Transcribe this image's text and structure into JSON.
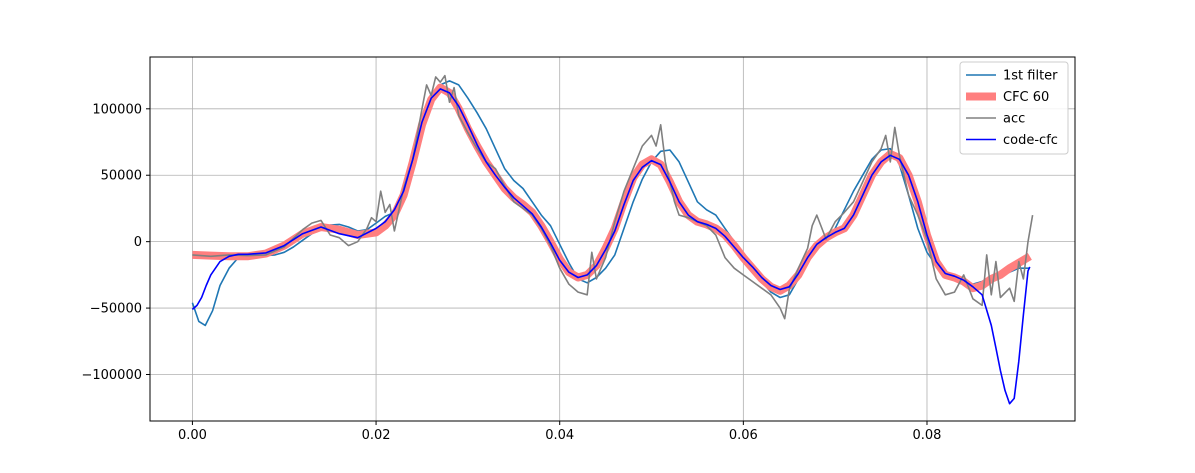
{
  "chart_data": {
    "type": "line",
    "title": "",
    "xlabel": "",
    "ylabel": "",
    "xlim": [
      -0.00462,
      0.09612
    ],
    "ylim": [
      -135000,
      139000
    ],
    "grid": true,
    "legend_position": "upper-right",
    "x_ticks": [
      0.0,
      0.02,
      0.04,
      0.06,
      0.08
    ],
    "x_tick_labels": [
      "0.00",
      "0.02",
      "0.04",
      "0.06",
      "0.08"
    ],
    "y_ticks": [
      -100000,
      -50000,
      0,
      50000,
      100000
    ],
    "y_tick_labels": [
      "−100000",
      "−50000",
      "0",
      "50000",
      "100000"
    ],
    "legend": [
      "1st filter",
      "CFC 60",
      "acc",
      "code-cfc"
    ],
    "series": [
      {
        "name": "1st filter",
        "color": "#1f77b4",
        "x": [
          0.0,
          0.0007,
          0.0014,
          0.0022,
          0.003,
          0.004,
          0.005,
          0.006,
          0.007,
          0.008,
          0.009,
          0.01,
          0.011,
          0.012,
          0.013,
          0.014,
          0.015,
          0.016,
          0.017,
          0.018,
          0.019,
          0.02,
          0.021,
          0.022,
          0.023,
          0.024,
          0.025,
          0.026,
          0.027,
          0.028,
          0.029,
          0.03,
          0.031,
          0.032,
          0.033,
          0.034,
          0.035,
          0.036,
          0.037,
          0.038,
          0.039,
          0.04,
          0.041,
          0.042,
          0.043,
          0.044,
          0.045,
          0.046,
          0.047,
          0.048,
          0.049,
          0.05,
          0.051,
          0.052,
          0.053,
          0.054,
          0.055,
          0.056,
          0.057,
          0.058,
          0.059,
          0.06,
          0.061,
          0.062,
          0.063,
          0.064,
          0.065,
          0.066,
          0.067,
          0.068,
          0.069,
          0.07,
          0.071,
          0.072,
          0.073,
          0.074,
          0.075,
          0.076,
          0.077,
          0.078,
          0.079,
          0.08,
          0.081,
          0.082,
          0.083,
          0.084,
          0.085,
          0.086,
          0.087,
          0.088,
          0.089,
          0.09,
          0.0912
        ],
        "y": [
          -46000,
          -60000,
          -63000,
          -52000,
          -33000,
          -20000,
          -12000,
          -9000,
          -9500,
          -10500,
          -10000,
          -8000,
          -4000,
          1000,
          6000,
          10000,
          12500,
          13000,
          11000,
          8000,
          9000,
          14000,
          19000,
          22000,
          32000,
          55000,
          85000,
          108000,
          118000,
          121000,
          118000,
          108000,
          97000,
          85000,
          70000,
          55000,
          46000,
          40000,
          30000,
          20000,
          12000,
          -2000,
          -16000,
          -28000,
          -31000,
          -27000,
          -20000,
          -10000,
          10000,
          30000,
          47000,
          60000,
          68000,
          69000,
          60000,
          45000,
          30000,
          24000,
          20000,
          10000,
          0,
          -10000,
          -20000,
          -30000,
          -38000,
          -42000,
          -40000,
          -28000,
          -15000,
          -5000,
          2000,
          10000,
          24000,
          38000,
          50000,
          62000,
          69000,
          70000,
          58000,
          35000,
          10000,
          -8000,
          -18000,
          -24000,
          -28000,
          -30000,
          -32000,
          -30000,
          -26000,
          -25000,
          -23000,
          -20000,
          -20000
        ]
      },
      {
        "name": "CFC 60",
        "color": "#ff7f7f",
        "x": [
          0.0,
          0.002,
          0.004,
          0.006,
          0.008,
          0.01,
          0.012,
          0.014,
          0.016,
          0.018,
          0.02,
          0.021,
          0.022,
          0.023,
          0.024,
          0.025,
          0.026,
          0.027,
          0.028,
          0.029,
          0.03,
          0.031,
          0.032,
          0.033,
          0.034,
          0.035,
          0.036,
          0.037,
          0.038,
          0.039,
          0.04,
          0.041,
          0.042,
          0.043,
          0.044,
          0.045,
          0.046,
          0.047,
          0.048,
          0.049,
          0.05,
          0.051,
          0.052,
          0.053,
          0.054,
          0.055,
          0.056,
          0.057,
          0.058,
          0.059,
          0.06,
          0.061,
          0.062,
          0.063,
          0.064,
          0.065,
          0.066,
          0.067,
          0.068,
          0.069,
          0.07,
          0.071,
          0.072,
          0.073,
          0.074,
          0.075,
          0.076,
          0.077,
          0.078,
          0.079,
          0.08,
          0.081,
          0.082,
          0.083,
          0.084,
          0.085,
          0.086,
          0.087,
          0.088,
          0.089,
          0.09,
          0.0912
        ],
        "y": [
          -10000,
          -10500,
          -11000,
          -11000,
          -9000,
          -3000,
          6000,
          11000,
          9000,
          5000,
          7000,
          12000,
          20000,
          35000,
          60000,
          88000,
          107000,
          116000,
          112000,
          100000,
          85000,
          72000,
          60000,
          50000,
          40000,
          33000,
          28000,
          22000,
          12000,
          0,
          -13000,
          -23000,
          -27000,
          -25000,
          -18000,
          -5000,
          10000,
          30000,
          48000,
          58000,
          62000,
          58000,
          45000,
          30000,
          20000,
          15000,
          13000,
          10000,
          5000,
          -3000,
          -12000,
          -20000,
          -28000,
          -34000,
          -37000,
          -33000,
          -25000,
          -12000,
          -3000,
          3000,
          7000,
          10000,
          20000,
          35000,
          50000,
          60000,
          66000,
          63000,
          50000,
          30000,
          5000,
          -15000,
          -25000,
          -27000,
          -30000,
          -35000,
          -33000,
          -28000,
          -25000,
          -20000,
          -16000,
          -11000
        ]
      },
      {
        "name": "acc",
        "color": "#808080",
        "x": [
          0.0,
          0.002,
          0.004,
          0.006,
          0.008,
          0.01,
          0.012,
          0.013,
          0.014,
          0.015,
          0.016,
          0.017,
          0.018,
          0.019,
          0.0195,
          0.02,
          0.0205,
          0.021,
          0.0215,
          0.022,
          0.023,
          0.024,
          0.025,
          0.0255,
          0.026,
          0.0265,
          0.027,
          0.0275,
          0.028,
          0.0285,
          0.029,
          0.03,
          0.031,
          0.032,
          0.033,
          0.034,
          0.035,
          0.036,
          0.037,
          0.038,
          0.039,
          0.04,
          0.041,
          0.042,
          0.043,
          0.0435,
          0.044,
          0.045,
          0.046,
          0.047,
          0.048,
          0.049,
          0.05,
          0.0505,
          0.051,
          0.0515,
          0.052,
          0.0525,
          0.053,
          0.054,
          0.055,
          0.056,
          0.057,
          0.058,
          0.059,
          0.06,
          0.061,
          0.062,
          0.063,
          0.064,
          0.0645,
          0.065,
          0.066,
          0.067,
          0.0675,
          0.068,
          0.069,
          0.07,
          0.071,
          0.072,
          0.073,
          0.074,
          0.075,
          0.0755,
          0.076,
          0.0765,
          0.077,
          0.078,
          0.079,
          0.08,
          0.081,
          0.082,
          0.083,
          0.084,
          0.085,
          0.086,
          0.0865,
          0.087,
          0.0875,
          0.088,
          0.089,
          0.0895,
          0.09,
          0.0905,
          0.091,
          0.0915
        ],
        "y": [
          -10000,
          -11000,
          -10000,
          -10500,
          -10000,
          -4000,
          9000,
          14000,
          16000,
          5000,
          3000,
          -3000,
          0,
          10000,
          18000,
          15000,
          38000,
          22000,
          28000,
          8000,
          40000,
          62000,
          100000,
          118000,
          110000,
          124000,
          120000,
          125000,
          105000,
          116000,
          95000,
          82000,
          70000,
          60000,
          55000,
          42000,
          30000,
          25000,
          20000,
          10000,
          -3000,
          -20000,
          -32000,
          -38000,
          -40000,
          -8000,
          -28000,
          -12000,
          15000,
          38000,
          55000,
          72000,
          80000,
          72000,
          88000,
          60000,
          45000,
          30000,
          20000,
          18000,
          15000,
          12000,
          5000,
          -12000,
          -20000,
          -25000,
          -30000,
          -35000,
          -40000,
          -50000,
          -58000,
          -36000,
          -20000,
          -5000,
          12000,
          20000,
          2000,
          15000,
          22000,
          30000,
          45000,
          60000,
          70000,
          80000,
          60000,
          86000,
          65000,
          35000,
          20000,
          2000,
          -28000,
          -40000,
          -38000,
          -25000,
          -43000,
          -48000,
          -10000,
          -40000,
          -15000,
          -42000,
          -35000,
          -45000,
          -15000,
          -28000,
          0,
          20000
        ]
      },
      {
        "name": "code-cfc",
        "color": "#0000ff",
        "x": [
          0.0,
          0.0005,
          0.001,
          0.0015,
          0.002,
          0.003,
          0.004,
          0.005,
          0.006,
          0.008,
          0.01,
          0.012,
          0.014,
          0.016,
          0.018,
          0.02,
          0.021,
          0.022,
          0.023,
          0.024,
          0.025,
          0.026,
          0.027,
          0.028,
          0.029,
          0.03,
          0.031,
          0.032,
          0.033,
          0.034,
          0.035,
          0.036,
          0.037,
          0.038,
          0.039,
          0.04,
          0.041,
          0.042,
          0.043,
          0.044,
          0.045,
          0.046,
          0.047,
          0.048,
          0.049,
          0.05,
          0.051,
          0.052,
          0.053,
          0.054,
          0.055,
          0.056,
          0.057,
          0.058,
          0.059,
          0.06,
          0.061,
          0.062,
          0.063,
          0.064,
          0.065,
          0.066,
          0.067,
          0.068,
          0.069,
          0.07,
          0.071,
          0.072,
          0.073,
          0.074,
          0.075,
          0.076,
          0.077,
          0.078,
          0.079,
          0.08,
          0.081,
          0.082,
          0.083,
          0.084,
          0.085,
          0.086,
          0.087,
          0.0875,
          0.088,
          0.0885,
          0.089,
          0.0895,
          0.09,
          0.0905,
          0.091,
          0.0912
        ],
        "y": [
          -51000,
          -48000,
          -42000,
          -33000,
          -25000,
          -15000,
          -11000,
          -9500,
          -9500,
          -8500,
          -3000,
          6000,
          11000,
          6000,
          3000,
          10000,
          15000,
          24000,
          38000,
          62000,
          90000,
          108000,
          115000,
          112000,
          102000,
          88000,
          73000,
          60000,
          50000,
          41000,
          33000,
          27000,
          21000,
          11000,
          -1000,
          -14000,
          -23000,
          -27000,
          -25000,
          -18000,
          -6000,
          8000,
          28000,
          46000,
          56000,
          61000,
          58000,
          45000,
          30000,
          20000,
          15000,
          13000,
          10000,
          4000,
          -4000,
          -12000,
          -19000,
          -27000,
          -33000,
          -36000,
          -34000,
          -24000,
          -12000,
          -2000,
          3000,
          7000,
          10000,
          20000,
          35000,
          50000,
          60000,
          65000,
          62000,
          50000,
          30000,
          5000,
          -15000,
          -24000,
          -26000,
          -29000,
          -34000,
          -40000,
          -63000,
          -80000,
          -97000,
          -112000,
          -122000,
          -118000,
          -90000,
          -55000,
          -22000,
          -19000
        ]
      }
    ]
  }
}
